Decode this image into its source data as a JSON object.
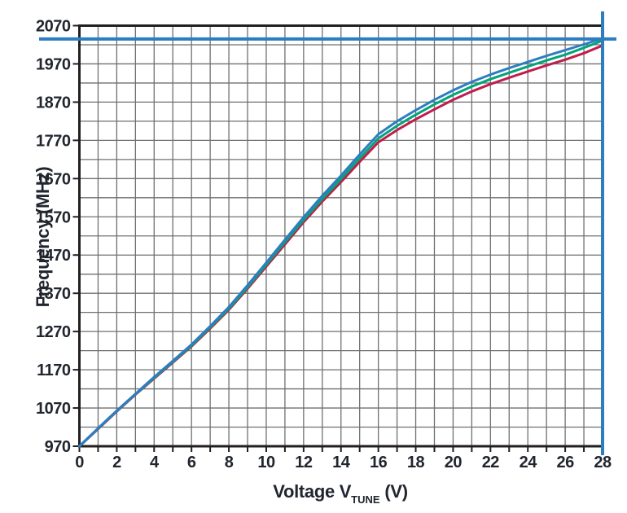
{
  "chart_data": {
    "type": "line",
    "title": "",
    "xlabel": "Voltage V_TUNE (V)",
    "xlabel_parts": {
      "pre": "Voltage V",
      "sub": "TUNE",
      "post": " (V)"
    },
    "ylabel": "Frequency (MHz)",
    "xlim": [
      0,
      28
    ],
    "ylim": [
      970,
      2070
    ],
    "grid": true,
    "x_minor_step": 1,
    "y_minor_step": 50,
    "x_tick_labels": [
      "0",
      "2",
      "4",
      "6",
      "8",
      "10",
      "12",
      "14",
      "16",
      "18",
      "20",
      "22",
      "24",
      "26",
      "28"
    ],
    "y_tick_labels": [
      "970",
      "1070",
      "1170",
      "1270",
      "1370",
      "1470",
      "1570",
      "1670",
      "1770",
      "1870",
      "1970",
      "2070"
    ],
    "x": [
      0,
      1,
      2,
      3,
      4,
      5,
      6,
      7,
      8,
      9,
      10,
      11,
      12,
      13,
      14,
      15,
      16,
      17,
      18,
      19,
      20,
      21,
      22,
      23,
      24,
      25,
      26,
      27,
      28
    ],
    "series": [
      {
        "name": "lower-curve",
        "color": "#c01d4e",
        "values": [
          970,
          1015,
          1061,
          1105,
          1147,
          1189,
          1231,
          1278,
          1327,
          1382,
          1440,
          1498,
          1556,
          1610,
          1661,
          1714,
          1765,
          1797,
          1825,
          1851,
          1876,
          1898,
          1917,
          1934,
          1950,
          1966,
          1981,
          1998,
          2018
        ]
      },
      {
        "name": "middle-curve",
        "color": "#00a578",
        "values": [
          970,
          1016,
          1062,
          1106,
          1149,
          1191,
          1233,
          1281,
          1330,
          1386,
          1445,
          1504,
          1562,
          1617,
          1669,
          1723,
          1775,
          1808,
          1837,
          1864,
          1889,
          1911,
          1930,
          1947,
          1963,
          1979,
          1994,
          2012,
          2031
        ]
      },
      {
        "name": "upper-curve",
        "color": "#2e7dc1",
        "values": [
          970,
          1017,
          1063,
          1107,
          1151,
          1193,
          1236,
          1284,
          1334,
          1391,
          1450,
          1510,
          1569,
          1625,
          1678,
          1733,
          1786,
          1820,
          1849,
          1876,
          1901,
          1923,
          1942,
          1959,
          1975,
          1991,
          2006,
          2021,
          2037
        ]
      }
    ],
    "reference_lines": [
      {
        "name": "frequency-limit-line",
        "orientation": "horizontal",
        "value": 2035,
        "color": "#2e7dc1"
      },
      {
        "name": "voltage-limit-line",
        "orientation": "vertical",
        "value": 28,
        "color": "#2e7dc1"
      }
    ]
  },
  "colors": {
    "background": "#ffffff",
    "frame": "#231f20",
    "grid": "#6e7071",
    "text": "#21252e",
    "accent_blue": "#2e7dc1"
  }
}
